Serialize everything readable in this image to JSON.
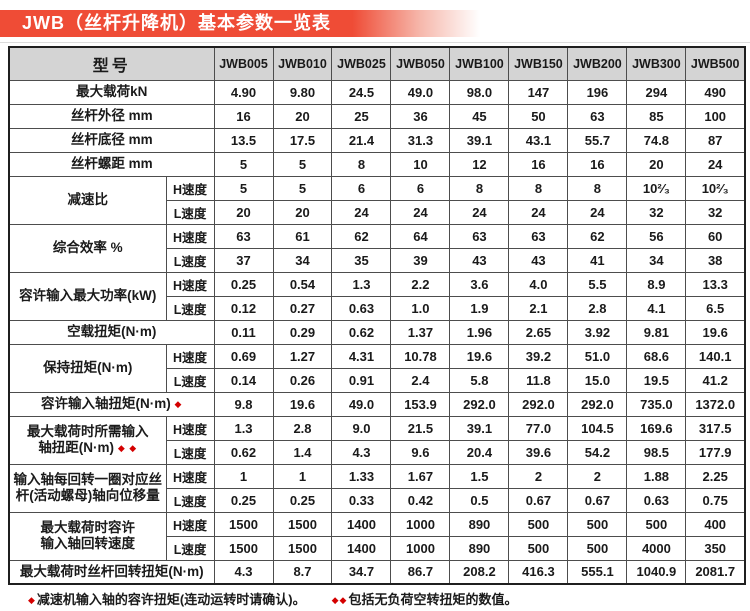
{
  "title": "JWB（丝杆升降机）基本参数一览表",
  "colors": {
    "banner_red": "#ef4c36",
    "header_bg": "#d4d4d4",
    "marker_red": "#d40000"
  },
  "table": {
    "model_header": "型号",
    "models": [
      "JWB005",
      "JWB010",
      "JWB025",
      "JWB050",
      "JWB100",
      "JWB150",
      "JWB200",
      "JWB300",
      "JWB500"
    ],
    "speed_labels": {
      "high": "H速度",
      "low": "L速度"
    },
    "rows": [
      {
        "label": "最大载荷kN",
        "values": [
          "4.90",
          "9.80",
          "24.5",
          "49.0",
          "98.0",
          "147",
          "196",
          "294",
          "490"
        ]
      },
      {
        "label": "丝杆外径 mm",
        "values": [
          "16",
          "20",
          "25",
          "36",
          "45",
          "50",
          "63",
          "85",
          "100"
        ]
      },
      {
        "label": "丝杆底径 mm",
        "values": [
          "13.5",
          "17.5",
          "21.4",
          "31.3",
          "39.1",
          "43.1",
          "55.7",
          "74.8",
          "87"
        ]
      },
      {
        "label": "丝杆螺距 mm",
        "values": [
          "5",
          "5",
          "8",
          "10",
          "12",
          "16",
          "16",
          "20",
          "24"
        ]
      },
      {
        "label": "减速比",
        "high": [
          "5",
          "5",
          "6",
          "6",
          "8",
          "8",
          "8",
          "10²⁄₃",
          "10²⁄₃"
        ],
        "low": [
          "20",
          "20",
          "24",
          "24",
          "24",
          "24",
          "24",
          "32",
          "32"
        ]
      },
      {
        "label": "综合效率 %",
        "high": [
          "63",
          "61",
          "62",
          "64",
          "63",
          "63",
          "62",
          "56",
          "60"
        ],
        "low": [
          "37",
          "34",
          "35",
          "39",
          "43",
          "43",
          "41",
          "34",
          "38"
        ]
      },
      {
        "label": "容许输入最大功率(kW)",
        "high": [
          "0.25",
          "0.54",
          "1.3",
          "2.2",
          "3.6",
          "4.0",
          "5.5",
          "8.9",
          "13.3"
        ],
        "low": [
          "0.12",
          "0.27",
          "0.63",
          "1.0",
          "1.9",
          "2.1",
          "2.8",
          "4.1",
          "6.5"
        ]
      },
      {
        "label": "空载扭矩(N·m)",
        "values": [
          "0.11",
          "0.29",
          "0.62",
          "1.37",
          "1.96",
          "2.65",
          "3.92",
          "9.81",
          "19.6"
        ]
      },
      {
        "label": "保持扭矩(N·m)",
        "high": [
          "0.69",
          "1.27",
          "4.31",
          "10.78",
          "19.6",
          "39.2",
          "51.0",
          "68.6",
          "140.1"
        ],
        "low": [
          "0.14",
          "0.26",
          "0.91",
          "2.4",
          "5.8",
          "11.8",
          "15.0",
          "19.5",
          "41.2"
        ]
      },
      {
        "label": "容许输入轴扭矩(N·m)",
        "marker": "◆",
        "values": [
          "9.8",
          "19.6",
          "49.0",
          "153.9",
          "292.0",
          "292.0",
          "292.0",
          "735.0",
          "1372.0"
        ]
      },
      {
        "label": "最大载荷时所需输入\n轴扭距(N·m)",
        "marker": "◆ ◆",
        "high": [
          "1.3",
          "2.8",
          "9.0",
          "21.5",
          "39.1",
          "77.0",
          "104.5",
          "169.6",
          "317.5"
        ],
        "low": [
          "0.62",
          "1.4",
          "4.3",
          "9.6",
          "20.4",
          "39.6",
          "54.2",
          "98.5",
          "177.9"
        ]
      },
      {
        "label": "输入轴每回转一圈对应丝\n杆(活动螺母)轴向位移量",
        "high": [
          "1",
          "1",
          "1.33",
          "1.67",
          "1.5",
          "2",
          "2",
          "1.88",
          "2.25"
        ],
        "low": [
          "0.25",
          "0.25",
          "0.33",
          "0.42",
          "0.5",
          "0.67",
          "0.67",
          "0.63",
          "0.75"
        ]
      },
      {
        "label": "最大载荷时容许\n输入轴回转速度",
        "high": [
          "1500",
          "1500",
          "1400",
          "1000",
          "890",
          "500",
          "500",
          "500",
          "400"
        ],
        "low": [
          "1500",
          "1500",
          "1400",
          "1000",
          "890",
          "500",
          "500",
          "4000",
          "350"
        ]
      },
      {
        "label": "最大载荷时丝杆回转扭矩(N·m)",
        "values": [
          "4.3",
          "8.7",
          "34.7",
          "86.7",
          "208.2",
          "416.3",
          "555.1",
          "1040.9",
          "2081.7"
        ]
      }
    ]
  },
  "footnotes": [
    {
      "marker": "◆",
      "text": "减速机输入轴的容许扭矩(连动运转时请确认)。"
    },
    {
      "marker": "◆◆",
      "text": "包括无负荷空转扭矩的数值。"
    }
  ]
}
